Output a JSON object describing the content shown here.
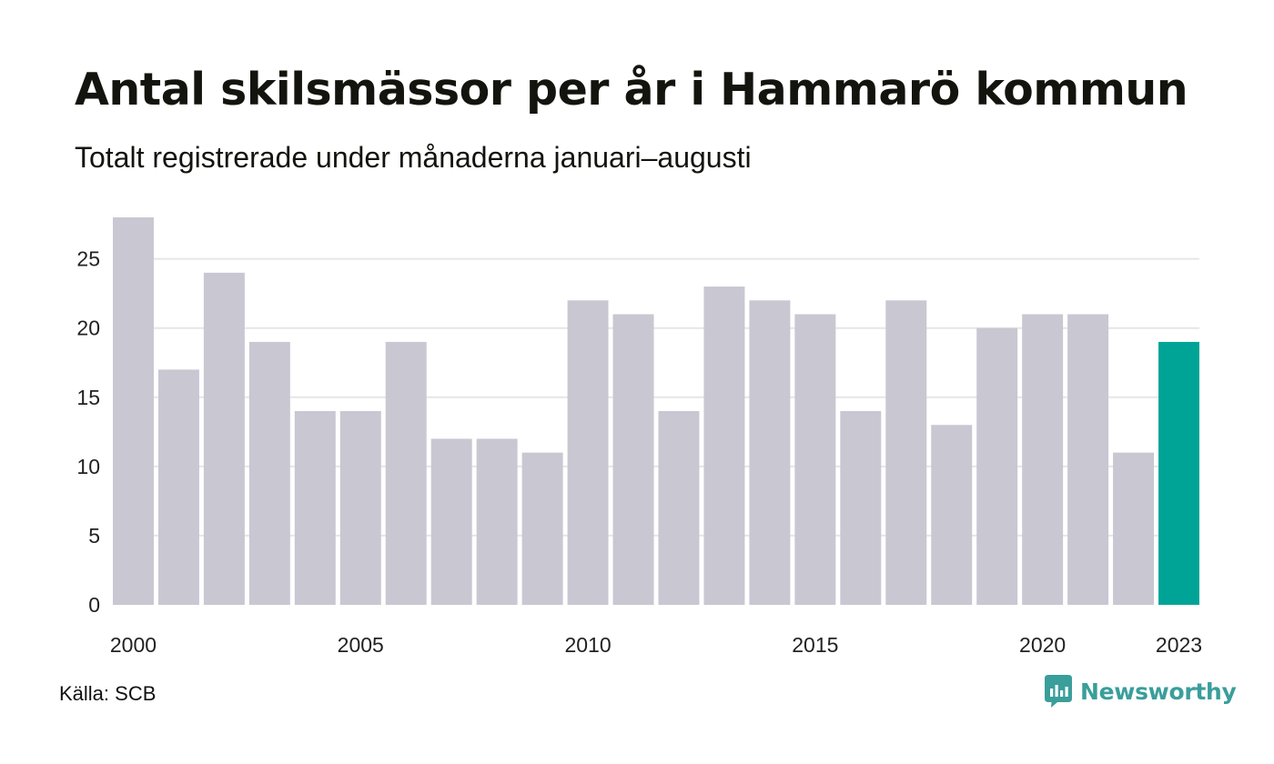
{
  "title": "Antal skilsmässor per år i Hammarö kommun",
  "subtitle": "Totalt registrerade under månaderna januari–augusti",
  "source": "Källa: SCB",
  "brand": {
    "name": "Newsworthy",
    "icon": "newsworthy-logo-icon",
    "color": "#3a9e9b"
  },
  "colors": {
    "bar": "#c8c7d2",
    "highlight": "#00a497",
    "grid": "#e6e6e6",
    "axis_text": "#222222"
  },
  "chart_data": {
    "type": "bar",
    "title": "Antal skilsmässor per år i Hammarö kommun",
    "subtitle": "Totalt registrerade under månaderna januari–augusti",
    "xlabel": "",
    "ylabel": "",
    "categories": [
      "2000",
      "2001",
      "2002",
      "2003",
      "2004",
      "2005",
      "2006",
      "2007",
      "2008",
      "2009",
      "2010",
      "2011",
      "2012",
      "2013",
      "2014",
      "2015",
      "2016",
      "2017",
      "2018",
      "2019",
      "2020",
      "2021",
      "2022",
      "2023"
    ],
    "values": [
      28,
      17,
      24,
      19,
      14,
      14,
      19,
      12,
      12,
      11,
      22,
      21,
      14,
      23,
      22,
      21,
      14,
      22,
      13,
      20,
      21,
      21,
      11,
      19
    ],
    "highlight_category": "2023",
    "x_tick_labels": [
      "2000",
      "2005",
      "2010",
      "2015",
      "2020",
      "2023"
    ],
    "y_ticks": [
      0,
      5,
      10,
      15,
      20,
      25
    ],
    "ylim": [
      0,
      28
    ],
    "grid": true,
    "legend": "none"
  }
}
